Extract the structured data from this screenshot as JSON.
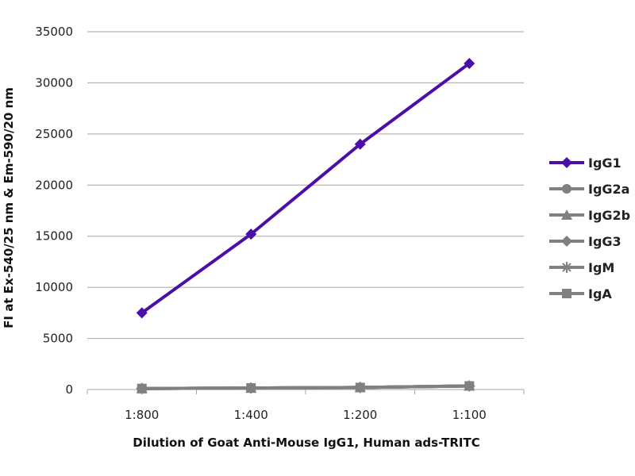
{
  "chart_data": {
    "type": "line",
    "title": "",
    "xlabel": "Dilution of Goat Anti-Mouse IgG1, Human ads-TRITC",
    "ylabel": "FI at Ex-540/25 nm & Em-590/20 nm",
    "categories": [
      "1:800",
      "1:400",
      "1:200",
      "1:100"
    ],
    "ylim": [
      0,
      35000
    ],
    "yticks": [
      0,
      5000,
      10000,
      15000,
      20000,
      25000,
      30000,
      35000
    ],
    "grid": true,
    "legend_position": "right",
    "series": [
      {
        "name": "IgG1",
        "values": [
          7500,
          15200,
          24000,
          31900
        ],
        "color": "#4b0fa8",
        "marker": "diamond"
      },
      {
        "name": "IgG2a",
        "values": [
          100,
          150,
          200,
          350
        ],
        "color": "#808080",
        "marker": "circle"
      },
      {
        "name": "IgG2b",
        "values": [
          100,
          150,
          200,
          350
        ],
        "color": "#808080",
        "marker": "triangle"
      },
      {
        "name": "IgG3",
        "values": [
          100,
          150,
          200,
          350
        ],
        "color": "#808080",
        "marker": "diamond"
      },
      {
        "name": "IgM",
        "values": [
          100,
          150,
          200,
          350
        ],
        "color": "#808080",
        "marker": "star"
      },
      {
        "name": "IgA",
        "values": [
          100,
          150,
          200,
          350
        ],
        "color": "#808080",
        "marker": "square"
      }
    ]
  }
}
